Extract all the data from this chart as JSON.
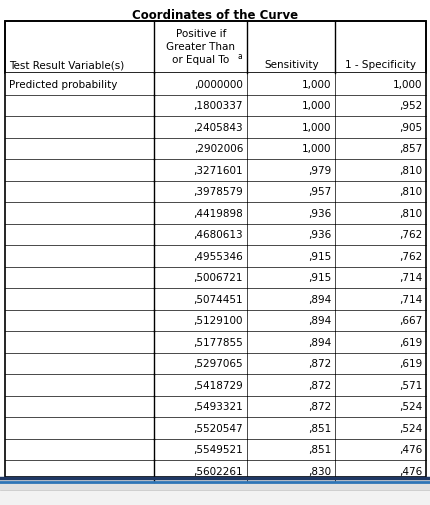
{
  "title": "Coordinates of the Curve",
  "col_headers": [
    "Test Result Variable(s)",
    "Positive if\nGreater Than\nor Equal Toᵃ",
    "Sensitivity",
    "1 - Specificity"
  ],
  "row_label": "Predicted probability",
  "rows": [
    [
      ",0000000",
      "1,000",
      "1,000"
    ],
    [
      ",1800337",
      "1,000",
      ",952"
    ],
    [
      ",2405843",
      "1,000",
      ",905"
    ],
    [
      ",2902006",
      "1,000",
      ",857"
    ],
    [
      ",3271601",
      ",979",
      ",810"
    ],
    [
      ",3978579",
      ",957",
      ",810"
    ],
    [
      ",4419898",
      ",936",
      ",810"
    ],
    [
      ",4680613",
      ",936",
      ",762"
    ],
    [
      ",4955346",
      ",915",
      ",762"
    ],
    [
      ",5006721",
      ",915",
      ",714"
    ],
    [
      ",5074451",
      ",894",
      ",714"
    ],
    [
      ",5129100",
      ",894",
      ",667"
    ],
    [
      ",5177855",
      ",894",
      ",619"
    ],
    [
      ",5297065",
      ",872",
      ",619"
    ],
    [
      ",5418729",
      ",872",
      ",571"
    ],
    [
      ",5493321",
      ",872",
      ",524"
    ],
    [
      ",5520547",
      ",851",
      ",524"
    ],
    [
      ",5549521",
      ",851",
      ",476"
    ],
    [
      ",5602261",
      ",830",
      ",476"
    ]
  ],
  "bg_color": "#ffffff",
  "border_color": "#000000",
  "title_fontsize": 8.5,
  "header_fontsize": 7.5,
  "cell_fontsize": 7.5,
  "figsize": [
    4.31,
    5.06
  ],
  "dpi": 100,
  "bottom_bar_color1": "#1f3864",
  "bottom_bar_color2": "#2e75b6",
  "bottom_bg_color": "#d9d9d9"
}
